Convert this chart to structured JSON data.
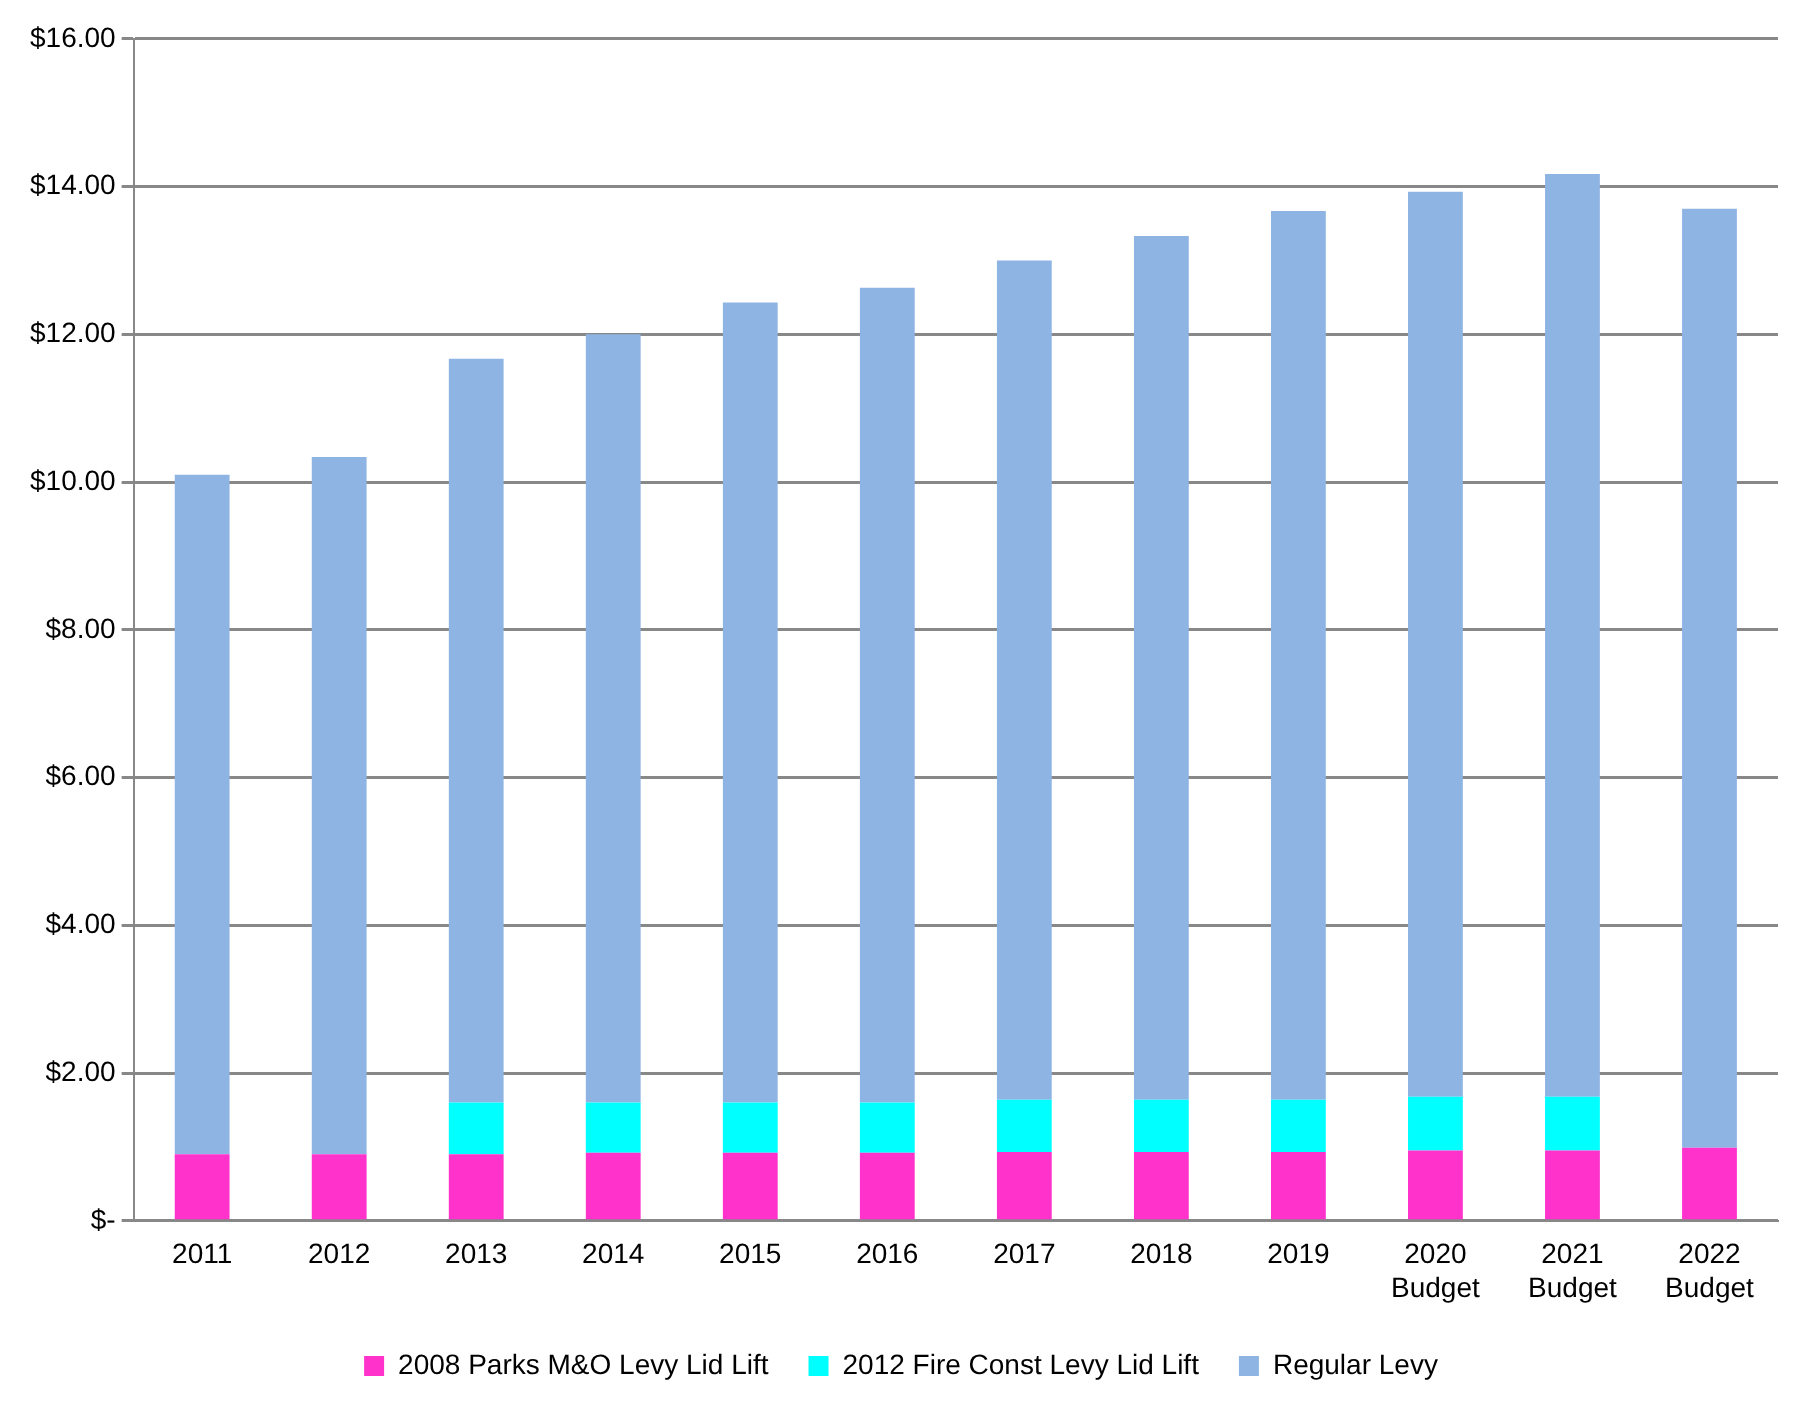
{
  "chart_data": {
    "type": "bar",
    "stacked": true,
    "categories": [
      "2011",
      "2012",
      "2013",
      "2014",
      "2015",
      "2016",
      "2017",
      "2018",
      "2019",
      "2020 Budget",
      "2021 Budget",
      "2022 Budget"
    ],
    "series": [
      {
        "name": "2008 Parks M&O Levy Lid Lift",
        "color": "#ff33cc",
        "values": [
          0.9,
          0.9,
          0.9,
          0.92,
          0.92,
          0.92,
          0.93,
          0.93,
          0.93,
          0.95,
          0.95,
          0.99
        ]
      },
      {
        "name": "2012 Fire Const Levy Lid Lift",
        "color": "#00ffff",
        "values": [
          0,
          0,
          0.7,
          0.68,
          0.68,
          0.68,
          0.71,
          0.71,
          0.71,
          0.73,
          0.73,
          0
        ]
      },
      {
        "name": "Regular Levy",
        "color": "#8eb4e3",
        "values": [
          9.2,
          9.44,
          10.07,
          10.4,
          10.83,
          11.03,
          11.36,
          11.69,
          12.03,
          12.25,
          12.49,
          12.71
        ]
      }
    ],
    "ylim": [
      0,
      16
    ],
    "yticks": [
      {
        "value": 0,
        "label": "$-"
      },
      {
        "value": 2,
        "label": "$2.00"
      },
      {
        "value": 4,
        "label": "$4.00"
      },
      {
        "value": 6,
        "label": "$6.00"
      },
      {
        "value": 8,
        "label": "$8.00"
      },
      {
        "value": 10,
        "label": "$10.00"
      },
      {
        "value": 12,
        "label": "$12.00"
      },
      {
        "value": 14,
        "label": "$14.00"
      },
      {
        "value": 16,
        "label": "$16.00"
      }
    ],
    "grid": "y",
    "legend": "bottom"
  }
}
